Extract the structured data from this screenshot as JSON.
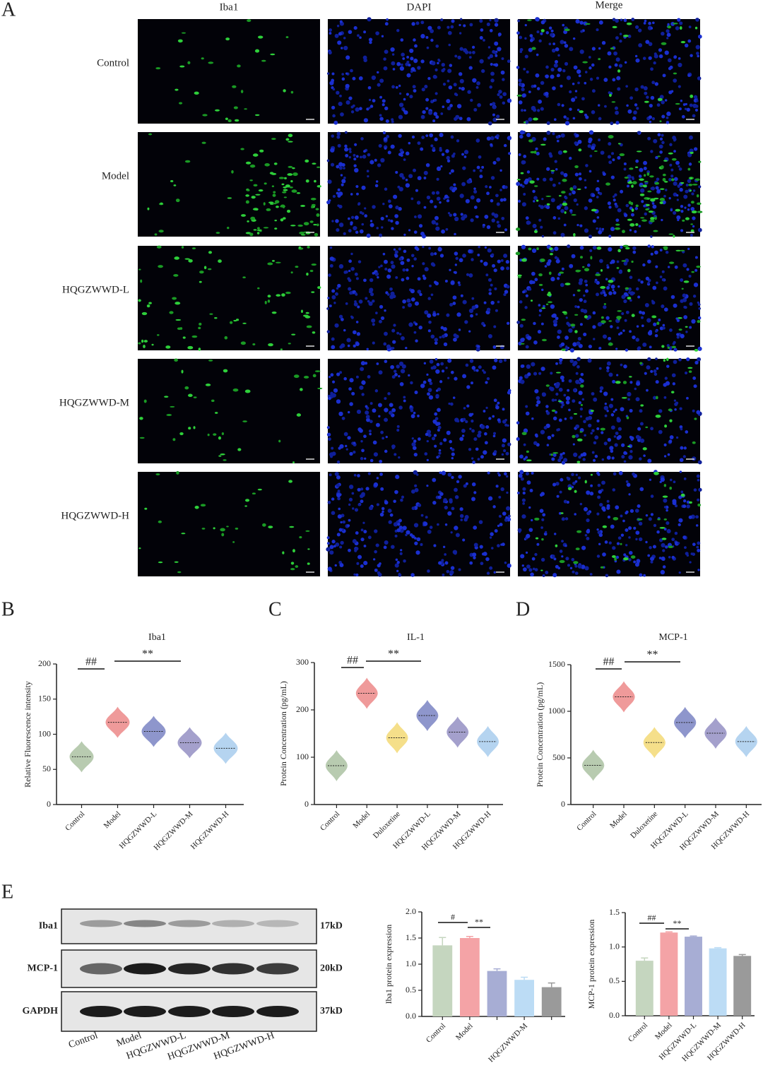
{
  "panel_labels": [
    "A",
    "B",
    "C",
    "D",
    "E"
  ],
  "panel_a": {
    "columns": [
      "Iba1",
      "DAPI",
      "Merge"
    ],
    "rows": [
      "Control",
      "Model",
      "HQGZWWD-L",
      "HQGZWWD-M",
      "HQGZWWD-H"
    ]
  },
  "blot": {
    "proteins": [
      "Iba1",
      "MCP-1",
      "GAPDH"
    ],
    "sizes": [
      "17kD",
      "20kD",
      "37kD"
    ],
    "lanes": [
      "Control",
      "Model",
      "HQGZWWD-L",
      "HQGZWWD-M",
      "HQGZWWD-H"
    ]
  },
  "chart_data": [
    {
      "type": "violin",
      "title": "Iba1",
      "y_label": "Relative Fluorescence intensity",
      "categories": [
        "Control",
        "Model",
        "HQGZWWD-L",
        "HQGZWWD-M",
        "HQGZWWD-H"
      ],
      "values": [
        68,
        117,
        104,
        88,
        80
      ],
      "colors": [
        "#b8cbb0",
        "#ef9a9a",
        "#8e96cc",
        "#a4a0cc",
        "#b5d4f0"
      ],
      "ylim": [
        0,
        200
      ],
      "yticks": [
        0,
        50,
        100,
        150,
        200
      ],
      "annotations": [
        "##",
        "**"
      ]
    },
    {
      "type": "violin",
      "title": "IL-1",
      "y_label": "Protein Concentration (pg/mL)",
      "categories": [
        "Control",
        "Model",
        "Duloxetine",
        "HQGZWWD-L",
        "HQGZWWD-M",
        "HQGZWWD-H"
      ],
      "values": [
        82,
        235,
        141,
        188,
        153,
        133
      ],
      "colors": [
        "#b8cbb0",
        "#ef9a9a",
        "#f5df8a",
        "#8e96cc",
        "#a4a0cc",
        "#b5d4f0"
      ],
      "ylim": [
        0,
        300
      ],
      "yticks": [
        0,
        100,
        200,
        300
      ],
      "annotations": [
        "##",
        "**"
      ]
    },
    {
      "type": "violin",
      "title": "MCP-1",
      "y_label": "Protein Concentration (pg/mL)",
      "categories": [
        "Control",
        "Model",
        "Duloxetine",
        "HQGZWWD-L",
        "HQGZWWD-M",
        "HQGZWWD-H"
      ],
      "values": [
        420,
        1155,
        665,
        880,
        765,
        675
      ],
      "colors": [
        "#b8cbb0",
        "#ef9a9a",
        "#f5df8a",
        "#8e96cc",
        "#a4a0cc",
        "#b5d4f0"
      ],
      "ylim": [
        0,
        1500
      ],
      "yticks": [
        0,
        500,
        1000,
        1500
      ],
      "annotations": [
        "##",
        "**"
      ]
    },
    {
      "type": "bar",
      "y_label": "Iba1 protein expression",
      "categories": [
        "Control",
        "Model",
        null,
        "HQGZWWD-M",
        null
      ],
      "values": [
        1.36,
        1.5,
        0.87,
        0.7,
        0.56
      ],
      "errors": [
        0.15,
        0.03,
        0.04,
        0.05,
        0.08
      ],
      "colors": [
        "#c5d6bf",
        "#f4a3a6",
        "#a7add4",
        "#bcdcf5",
        "#9a9a9a"
      ],
      "ylim": [
        0,
        2
      ],
      "yticks": [
        {
          "value": 0,
          "label": "0.0"
        },
        {
          "value": 0.5,
          "label": "0.5"
        },
        {
          "value": 1,
          "label": "1.0"
        },
        {
          "value": 1.5,
          "label": "1.5"
        },
        {
          "value": 2,
          "label": "2.0"
        }
      ],
      "annotations": [
        "#",
        "**"
      ]
    },
    {
      "type": "bar",
      "y_label": "MCP-1 protein expression",
      "categories": [
        "Control",
        "Model",
        "HQGZWWD-L",
        "HQGZWWD-M",
        "HQGZWWD-H"
      ],
      "values": [
        0.8,
        1.21,
        1.15,
        0.98,
        0.87
      ],
      "errors": [
        0.04,
        0.01,
        0.01,
        0.01,
        0.02
      ],
      "colors": [
        "#c5d6bf",
        "#f4a3a6",
        "#a7add4",
        "#bcdcf5",
        "#9a9a9a"
      ],
      "ylim": [
        0,
        1.5
      ],
      "yticks": [
        {
          "value": 0,
          "label": "0.0"
        },
        {
          "value": 0.5,
          "label": "0.5"
        },
        {
          "value": 1,
          "label": "1.0"
        },
        {
          "value": 1.5,
          "label": "1.5"
        }
      ],
      "annotations": [
        "##",
        "**"
      ]
    }
  ]
}
